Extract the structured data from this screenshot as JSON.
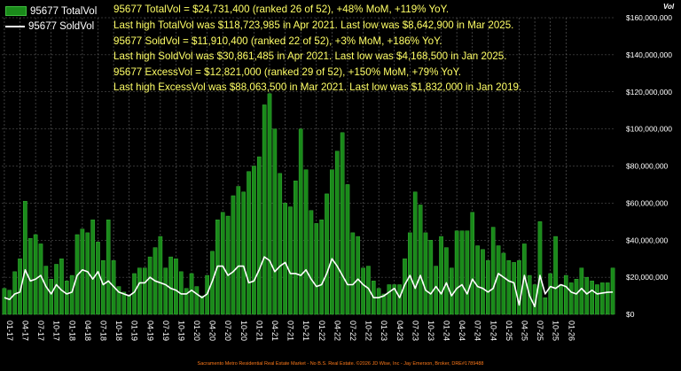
{
  "legend": {
    "total_label": "95677 TotalVol",
    "sold_label": "95677 SoldVol"
  },
  "stats": [
    "95677 TotalVol = $24,731,400 (ranked 26 of 52),  +48% MoM, +119% YoY.",
    "Last high TotalVol was $118,723,985 in Apr 2021. Last low was $8,642,900 in Mar 2025.",
    "95677 SoldVol = $11,910,400 (ranked 22 of 52), +3% MoM, +186% YoY.",
    "Last high SoldVol was $30,861,485 in Apr 2021. Last low was $4,168,500 in Jan 2025.",
    "95677 ExcessVol = $12,821,000 (ranked 29 of 52), +150% MoM, +79% YoY.",
    "Last high ExcessVol was $88,063,500 in Mar 2021. Last low was $1,832,000 in Jan 2019."
  ],
  "footer": "Sacramento Metro Residential Real Estate Market - No B.S. Real Estate. ©2026 JD Wise, Inc - Jay Emerson, Broker, DRE#1789488",
  "colors": {
    "bar_fill": "#1a8a1a",
    "bar_edge": "#3fbf3f",
    "line": "#ffffff",
    "grid": "#666666",
    "text": "#ffffff",
    "stats_text": "#ffff66",
    "footer_text": "#ff7a1a"
  },
  "chart_data": {
    "type": "bar",
    "ylabel": "Vol",
    "ylim": [
      0,
      160000000
    ],
    "y_ticks": [
      0,
      20000000,
      40000000,
      60000000,
      80000000,
      100000000,
      120000000,
      140000000,
      160000000
    ],
    "y_tick_labels": [
      "$0",
      "$20,000,000",
      "$40,000,000",
      "$60,000,000",
      "$80,000,000",
      "$100,000,000",
      "$120,000,000",
      "$140,000,000",
      "$160,000,000"
    ],
    "x_tick_labels": [
      "01-17",
      "04-17",
      "07-17",
      "10-17",
      "01-18",
      "04-18",
      "07-18",
      "10-18",
      "01-19",
      "04-19",
      "07-19",
      "10-19",
      "01-20",
      "04-20",
      "07-20",
      "10-20",
      "01-21",
      "04-21",
      "07-21",
      "10-21",
      "01-22",
      "04-22",
      "07-22",
      "10-22",
      "01-23",
      "04-23",
      "07-23",
      "10-23",
      "01-24",
      "04-24",
      "07-24",
      "10-24",
      "01-25",
      "04-25",
      "07-25",
      "10-25",
      "01-26"
    ],
    "x_tick_every": 3,
    "grid": true,
    "legend_position": "top-left",
    "series": [
      {
        "name": "95677 TotalVol",
        "type": "bar",
        "values": [
          14000000,
          13000000,
          23000000,
          30000000,
          61000000,
          41000000,
          43000000,
          38000000,
          26000000,
          19000000,
          27000000,
          30000000,
          18000000,
          21000000,
          43000000,
          46000000,
          44000000,
          51000000,
          39000000,
          29000000,
          51000000,
          29000000,
          15000000,
          12000000,
          10000000,
          22000000,
          25000000,
          25000000,
          31000000,
          36000000,
          42000000,
          25000000,
          31000000,
          30000000,
          23000000,
          14000000,
          22000000,
          15000000,
          10000000,
          21000000,
          34000000,
          51000000,
          55000000,
          53000000,
          64000000,
          69000000,
          66000000,
          77000000,
          80000000,
          85000000,
          113000000,
          119000000,
          100000000,
          76000000,
          60000000,
          58000000,
          72000000,
          100000000,
          78000000,
          56000000,
          49000000,
          51000000,
          65000000,
          78000000,
          88000000,
          98000000,
          70000000,
          44000000,
          42000000,
          25000000,
          26000000,
          18000000,
          14000000,
          11000000,
          16000000,
          16000000,
          16000000,
          30000000,
          44000000,
          66000000,
          59000000,
          44000000,
          40000000,
          26000000,
          42000000,
          36000000,
          25000000,
          45000000,
          45000000,
          45000000,
          55000000,
          37000000,
          35000000,
          29000000,
          47000000,
          37000000,
          33000000,
          29000000,
          28000000,
          29000000,
          38000000,
          21000000,
          16000000,
          50000000,
          9000000,
          22000000,
          42000000,
          16000000,
          21000000,
          17000000,
          19000000,
          25000000,
          20000000,
          18000000,
          16000000,
          17000000,
          17000000,
          25000000
        ]
      },
      {
        "name": "95677 SoldVol",
        "type": "line",
        "values": [
          9000000,
          8000000,
          11000000,
          12000000,
          24000000,
          18000000,
          19000000,
          21000000,
          15000000,
          11000000,
          16000000,
          13000000,
          11000000,
          12000000,
          21000000,
          24000000,
          23000000,
          19000000,
          23000000,
          16000000,
          18000000,
          15000000,
          12000000,
          11000000,
          10000000,
          12000000,
          17000000,
          17000000,
          20000000,
          18000000,
          17000000,
          16000000,
          14000000,
          13000000,
          11000000,
          11000000,
          13000000,
          11000000,
          9000000,
          11000000,
          18000000,
          26000000,
          26000000,
          21000000,
          23000000,
          26000000,
          26000000,
          17000000,
          18000000,
          24000000,
          31000000,
          29000000,
          23000000,
          26000000,
          28000000,
          22000000,
          22000000,
          21000000,
          24000000,
          19000000,
          15000000,
          16000000,
          22000000,
          30000000,
          26000000,
          21000000,
          16000000,
          16000000,
          19000000,
          16000000,
          14000000,
          9000000,
          9000000,
          10000000,
          12000000,
          14000000,
          9000000,
          16000000,
          21000000,
          14000000,
          21000000,
          13000000,
          11000000,
          15000000,
          11000000,
          17000000,
          10000000,
          14000000,
          16000000,
          11000000,
          19000000,
          15000000,
          14000000,
          12000000,
          14000000,
          22000000,
          20000000,
          18000000,
          17000000,
          5000000,
          21000000,
          10000000,
          4168500,
          21000000,
          11000000,
          15000000,
          14000000,
          16000000,
          15000000,
          12000000,
          11000000,
          14000000,
          11000000,
          13000000,
          11000000,
          11500000,
          11910400,
          12000000
        ]
      }
    ]
  }
}
